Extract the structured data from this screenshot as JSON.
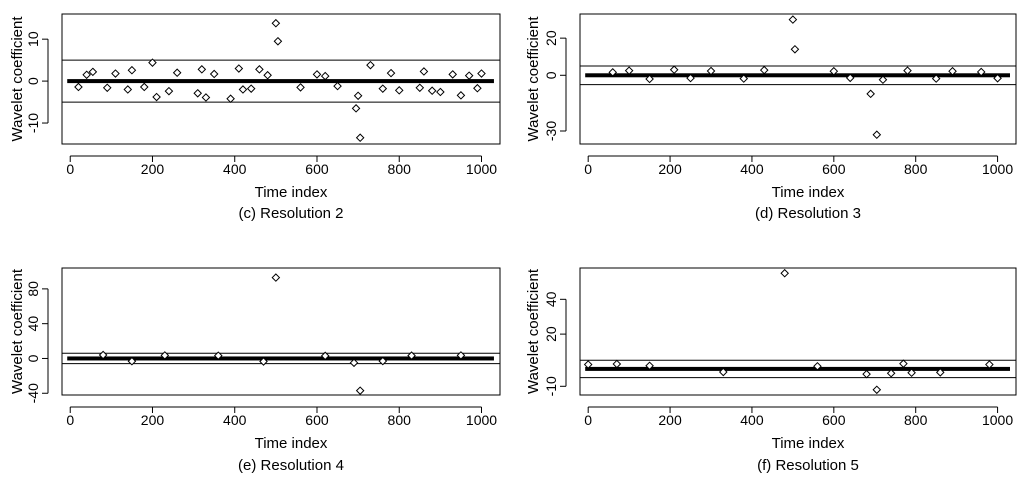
{
  "chart_data": [
    {
      "type": "scatter",
      "caption": "(c) Resolution 2",
      "xlabel": "Time index",
      "ylabel": "Wavelet coefficient",
      "xlim": [
        -20,
        1045
      ],
      "ylim": [
        -15,
        16
      ],
      "xticks": [
        0,
        200,
        400,
        600,
        800,
        1000
      ],
      "yticks": [
        -10,
        0,
        10
      ],
      "thresholds": [
        5,
        -5
      ],
      "band": [
        -0.4,
        0.4
      ],
      "points": [
        [
          500,
          13.8
        ],
        [
          505,
          9.5
        ],
        [
          200,
          4.4
        ],
        [
          730,
          3.8
        ],
        [
          320,
          2.8
        ],
        [
          150,
          2.6
        ],
        [
          460,
          2.8
        ],
        [
          55,
          2.2
        ],
        [
          410,
          3.0
        ],
        [
          860,
          2.3
        ],
        [
          600,
          1.6
        ],
        [
          20,
          -1.4
        ],
        [
          90,
          -1.6
        ],
        [
          140,
          -2.0
        ],
        [
          210,
          -3.8
        ],
        [
          240,
          -2.4
        ],
        [
          310,
          -2.9
        ],
        [
          330,
          -3.9
        ],
        [
          390,
          -4.2
        ],
        [
          440,
          -1.8
        ],
        [
          560,
          -1.5
        ],
        [
          695,
          -6.5
        ],
        [
          700,
          -3.5
        ],
        [
          705,
          -13.5
        ],
        [
          760,
          -1.8
        ],
        [
          800,
          -2.2
        ],
        [
          850,
          -1.6
        ],
        [
          900,
          -2.6
        ],
        [
          950,
          -3.4
        ],
        [
          990,
          -1.7
        ],
        [
          40,
          1.5
        ],
        [
          110,
          1.8
        ],
        [
          260,
          2.0
        ],
        [
          350,
          1.7
        ],
        [
          480,
          1.4
        ],
        [
          620,
          1.2
        ],
        [
          780,
          1.9
        ],
        [
          930,
          1.6
        ],
        [
          1000,
          1.8
        ],
        [
          180,
          -1.4
        ],
        [
          420,
          -2.0
        ],
        [
          650,
          -1.2
        ],
        [
          880,
          -2.3
        ],
        [
          970,
          1.3
        ]
      ]
    },
    {
      "type": "scatter",
      "caption": "(d) Resolution 3",
      "xlabel": "Time index",
      "ylabel": "Wavelet coefficient",
      "xlim": [
        -20,
        1045
      ],
      "ylim": [
        -37,
        33
      ],
      "xticks": [
        0,
        200,
        400,
        600,
        800,
        1000
      ],
      "yticks": [
        -30,
        0,
        20
      ],
      "thresholds": [
        5,
        -5
      ],
      "band": [
        -1.0,
        1.0
      ],
      "points": [
        [
          500,
          30
        ],
        [
          505,
          14
        ],
        [
          690,
          -10
        ],
        [
          705,
          -32
        ],
        [
          210,
          3.0
        ],
        [
          100,
          2.5
        ],
        [
          300,
          2.3
        ],
        [
          430,
          2.8
        ],
        [
          600,
          2.2
        ],
        [
          780,
          2.5
        ],
        [
          890,
          2.2
        ],
        [
          150,
          -2.0
        ],
        [
          380,
          -1.8
        ],
        [
          720,
          -2.4
        ],
        [
          850,
          -1.8
        ],
        [
          960,
          1.8
        ],
        [
          60,
          1.6
        ],
        [
          250,
          -1.5
        ],
        [
          640,
          -1.4
        ],
        [
          1000,
          -1.6
        ]
      ]
    },
    {
      "type": "scatter",
      "caption": "(e) Resolution 4",
      "xlabel": "Time index",
      "ylabel": "Wavelet coefficient",
      "xlim": [
        -20,
        1045
      ],
      "ylim": [
        -42,
        104
      ],
      "xticks": [
        0,
        200,
        400,
        600,
        800,
        1000
      ],
      "yticks": [
        -40,
        0,
        40,
        80
      ],
      "thresholds": [
        6,
        -6
      ],
      "band": [
        -2.0,
        2.0
      ],
      "points": [
        [
          500,
          93
        ],
        [
          690,
          -5
        ],
        [
          705,
          -37
        ],
        [
          80,
          4.0
        ],
        [
          230,
          3.5
        ],
        [
          360,
          3.2
        ],
        [
          620,
          3.0
        ],
        [
          830,
          3.3
        ],
        [
          950,
          3.5
        ],
        [
          150,
          -3.2
        ],
        [
          470,
          -3.5
        ],
        [
          760,
          -3.0
        ]
      ]
    },
    {
      "type": "scatter",
      "caption": "(f) Resolution 5",
      "xlabel": "Time index",
      "ylabel": "Wavelet coefficient",
      "xlim": [
        -20,
        1045
      ],
      "ylim": [
        -15,
        58
      ],
      "xticks": [
        0,
        200,
        400,
        600,
        800,
        1000
      ],
      "yticks": [
        -10,
        20,
        40
      ],
      "thresholds": [
        5,
        -5
      ],
      "band": [
        -1.0,
        1.0
      ],
      "points": [
        [
          480,
          55
        ],
        [
          680,
          -3
        ],
        [
          705,
          -12
        ],
        [
          740,
          -2.5
        ],
        [
          790,
          -2.2
        ],
        [
          860,
          -2.0
        ],
        [
          330,
          -1.8
        ],
        [
          0,
          2.5
        ],
        [
          70,
          2.8
        ],
        [
          770,
          3.0
        ],
        [
          980,
          2.5
        ],
        [
          150,
          1.8
        ],
        [
          560,
          1.5
        ]
      ]
    }
  ]
}
